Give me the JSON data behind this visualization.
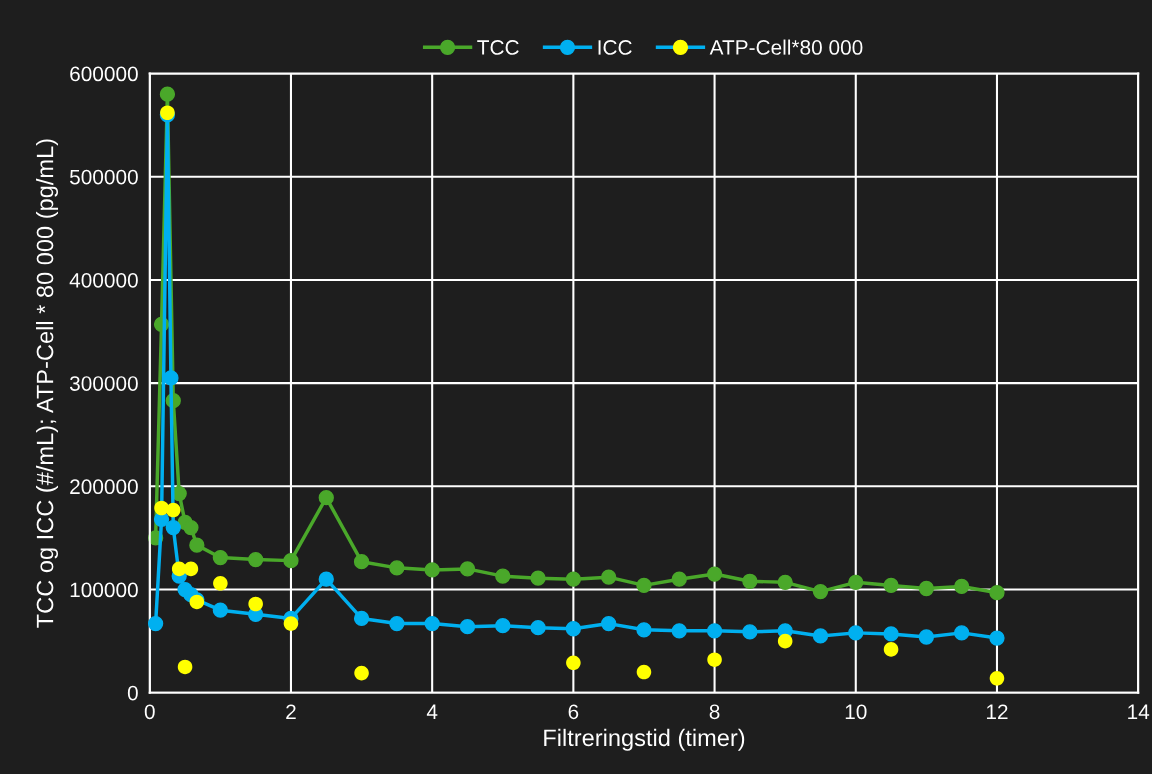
{
  "chart_data": {
    "type": "line",
    "xlabel": "Filtreringstid (timer)",
    "ylabel": "TCC og ICC (#/mL); ATP-Cell * 80 000 (pg/mL)",
    "xlim": [
      0,
      14
    ],
    "xticks": [
      0,
      2,
      4,
      6,
      8,
      10,
      12,
      14
    ],
    "ylim": [
      0,
      600000
    ],
    "yticks": [
      0,
      100000,
      200000,
      300000,
      400000,
      500000,
      600000
    ],
    "grid": true,
    "legend": "top",
    "marker": "circle",
    "series": [
      {
        "name": "TCC",
        "color": "#4aa82a",
        "x": [
          0.083,
          0.167,
          0.25,
          0.333,
          0.417,
          0.5,
          0.583,
          0.667,
          1,
          1.5,
          2,
          2.5,
          3,
          3.5,
          4,
          4.5,
          5,
          5.5,
          6,
          6.5,
          7,
          7.5,
          8,
          8.5,
          9,
          9.5,
          10,
          10.5,
          11,
          11.5,
          12
        ],
        "values": [
          150000,
          357000,
          580000,
          283000,
          193000,
          165000,
          160000,
          143000,
          131000,
          129000,
          128000,
          189000,
          127000,
          121000,
          119000,
          120000,
          113000,
          111000,
          110000,
          112000,
          104000,
          110000,
          115000,
          108000,
          107000,
          98000,
          107000,
          104000,
          101000,
          103000,
          97000
        ]
      },
      {
        "name": "ICC",
        "color": "#00b0f0",
        "x": [
          0.083,
          0.167,
          0.25,
          0.3,
          0.333,
          0.417,
          0.5,
          0.583,
          0.667,
          1,
          1.5,
          2,
          2.5,
          3,
          3.5,
          4,
          4.5,
          5,
          5.5,
          6,
          6.5,
          7,
          7.5,
          8,
          8.5,
          9,
          9.5,
          10,
          10.5,
          11,
          11.5,
          12
        ],
        "values": [
          67000,
          168000,
          560000,
          305000,
          160000,
          113000,
          100000,
          95000,
          90000,
          80000,
          76000,
          72000,
          110000,
          72000,
          67000,
          67000,
          64000,
          65000,
          63000,
          62000,
          67000,
          61000,
          60000,
          60000,
          59000,
          60000,
          55000,
          58000,
          57000,
          54000,
          58000,
          53000
        ]
      },
      {
        "name": "ATP-Cell*80 000",
        "type": "scatter",
        "color": "#ffff00",
        "x": [
          0.167,
          0.25,
          0.333,
          0.417,
          0.5,
          0.583,
          0.667,
          1,
          1.5,
          2,
          3,
          6,
          7,
          8,
          9,
          10.5,
          12
        ],
        "values": [
          179000,
          562000,
          177000,
          120000,
          25000,
          120000,
          88000,
          106000,
          86000,
          67000,
          19000,
          29000,
          20000,
          32000,
          50000,
          42000,
          14000
        ]
      }
    ]
  }
}
